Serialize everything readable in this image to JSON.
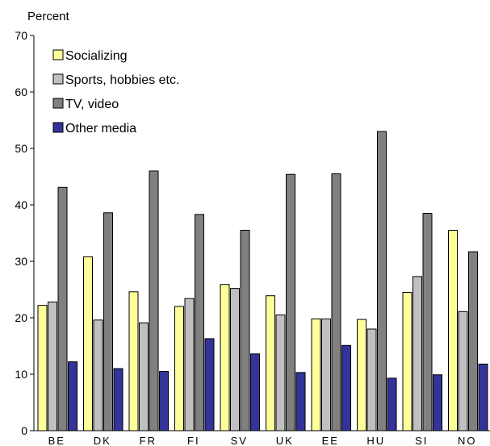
{
  "chart_data": {
    "type": "bar",
    "ylabel": "Percent",
    "ylim": [
      0,
      70
    ],
    "yticks": [
      0,
      10,
      20,
      30,
      40,
      50,
      60,
      70
    ],
    "grid": false,
    "legend_placement": "top-left",
    "categories": [
      "BE",
      "DK",
      "FR",
      "FI",
      "SV",
      "UK",
      "EE",
      "HU",
      "SI",
      "NO"
    ],
    "series": [
      {
        "name": "Socializing",
        "color": "#ffff99",
        "values": [
          22.2,
          30.8,
          24.6,
          22.0,
          25.9,
          23.9,
          19.8,
          19.7,
          24.5,
          35.5
        ]
      },
      {
        "name": "Sports, hobbies etc.",
        "color": "#c0c0c0",
        "values": [
          22.8,
          19.6,
          19.1,
          23.4,
          25.2,
          20.5,
          19.8,
          18.0,
          27.3,
          21.1
        ]
      },
      {
        "name": "TV, video",
        "color": "#808080",
        "values": [
          43.1,
          38.6,
          46.0,
          38.3,
          35.5,
          45.4,
          45.5,
          53.0,
          38.5,
          31.7
        ]
      },
      {
        "name": "Other media",
        "color": "#333399",
        "values": [
          12.2,
          11.0,
          10.5,
          16.3,
          13.6,
          10.3,
          15.1,
          9.3,
          9.9,
          11.8
        ]
      }
    ]
  }
}
